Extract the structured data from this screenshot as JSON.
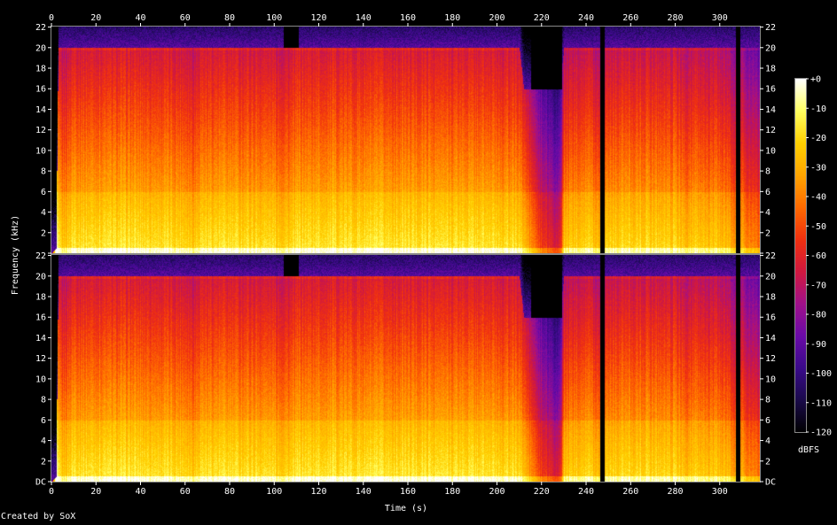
{
  "chart_data": {
    "type": "heatmap",
    "title": "",
    "xlabel": "Time (s)",
    "ylabel": "Frequency (kHz)",
    "colorbar_label": "dBFS",
    "x": {
      "min": 0,
      "max": 318,
      "ticks": [
        0,
        20,
        40,
        60,
        80,
        100,
        120,
        140,
        160,
        180,
        200,
        220,
        240,
        260,
        280,
        300
      ]
    },
    "y": {
      "min": 0,
      "max": 22.05,
      "ticks": [
        0,
        2,
        4,
        6,
        8,
        10,
        12,
        14,
        16,
        18,
        20,
        22
      ],
      "tick_labels": [
        "DC",
        "2",
        "4",
        "6",
        "8",
        "10",
        "12",
        "14",
        "16",
        "18",
        "20",
        "22"
      ]
    },
    "colorbar": {
      "min": -120,
      "max": 0,
      "ticks": [
        0,
        -10,
        -20,
        -30,
        -40,
        -50,
        -60,
        -70,
        -80,
        -90,
        -100,
        -110,
        -120
      ],
      "tick_labels": [
        "+0",
        "-10",
        "-20",
        "-30",
        "-40",
        "-50",
        "-60",
        "-70",
        "-80",
        "-90",
        "-100",
        "-110",
        "-120"
      ]
    },
    "channels": 2,
    "colors": [
      "#000000",
      "#1a0a4a",
      "#3a0a8a",
      "#6a0aa8",
      "#a0108a",
      "#d01840",
      "#f03010",
      "#ff6a00",
      "#ffa500",
      "#ffd000",
      "#ffff60",
      "#ffffff"
    ],
    "profile": {
      "time": [
        0,
        2,
        3,
        5,
        8,
        10,
        12,
        20,
        40,
        60,
        64,
        66,
        68,
        100,
        103,
        108,
        110,
        130,
        160,
        190,
        210,
        212,
        216,
        220,
        225,
        228,
        230,
        240,
        245,
        247,
        260,
        280,
        285,
        287,
        300,
        305,
        307,
        310,
        312,
        315,
        318
      ],
      "cutoff_khz": [
        0,
        0.5,
        20,
        20,
        20,
        20,
        20,
        20,
        20,
        20,
        20,
        20,
        20,
        20,
        20,
        20,
        20,
        20,
        20,
        20,
        20,
        16,
        16,
        16,
        16,
        16,
        20,
        20,
        20,
        20,
        20,
        20,
        20,
        20,
        20,
        20,
        20,
        20,
        20,
        20,
        20
      ],
      "level_db": [
        -120,
        -40,
        -55,
        -60,
        -55,
        -50,
        -52,
        -52,
        -52,
        -54,
        -58,
        -52,
        -52,
        -54,
        -56,
        -56,
        -52,
        -52,
        -52,
        -52,
        -54,
        -62,
        -75,
        -90,
        -95,
        -100,
        -60,
        -54,
        -62,
        -56,
        -55,
        -56,
        -60,
        -58,
        -60,
        -65,
        -70,
        -68,
        -75,
        -72,
        -80
      ],
      "rolloff_db_per_khz": 2.2
    },
    "gaps": [
      {
        "t0": 104,
        "t1": 111,
        "above_khz": 20
      },
      {
        "t0": 215,
        "t1": 229,
        "above_khz": 16
      },
      {
        "t0": 246,
        "t1": 248,
        "above_khz": 0
      },
      {
        "t0": 307,
        "t1": 309,
        "above_khz": 0
      }
    ]
  },
  "credit": "Created by SoX"
}
